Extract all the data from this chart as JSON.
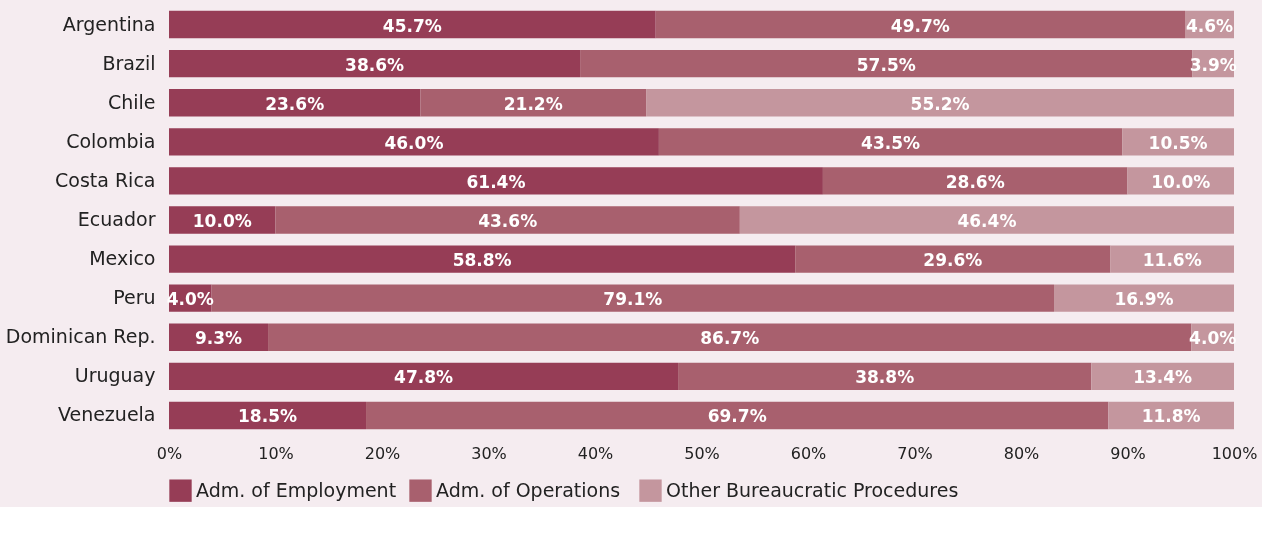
{
  "chart_data": {
    "type": "bar",
    "orientation": "horizontal",
    "stacked": true,
    "legend": "bottom",
    "grid": false,
    "categories": [
      "Argentina",
      "Brazil",
      "Chile",
      "Colombia",
      "Costa Rica",
      "Ecuador",
      "Mexico",
      "Peru",
      "Dominican Rep.",
      "Uruguay",
      "Venezuela"
    ],
    "series": [
      {
        "name": "Adm. of Employment",
        "color": "#963d56",
        "values": [
          45.7,
          38.6,
          23.6,
          46.0,
          61.4,
          10.0,
          58.8,
          4.0,
          9.3,
          47.8,
          18.5
        ],
        "value_labels": [
          "45.7%",
          "38.6%",
          "23.6%",
          "46.0%",
          "61.4%",
          "10.0%",
          "58.8%",
          "4.0%",
          "9.3%",
          "47.8%",
          "18.5%"
        ]
      },
      {
        "name": "Adm. of  Operations",
        "color": "#a8606e",
        "values": [
          49.7,
          57.5,
          21.2,
          43.5,
          28.6,
          43.6,
          29.6,
          79.1,
          86.7,
          38.8,
          69.7
        ],
        "value_labels": [
          "49.7%",
          "57.5%",
          "21.2%",
          "43.5%",
          "28.6%",
          "43.6%",
          "29.6%",
          "79.1%",
          "86.7%",
          "38.8%",
          "69.7%"
        ]
      },
      {
        "name": "Other Bureaucratic Procedures",
        "color": "#c4969e",
        "values": [
          4.6,
          3.9,
          55.2,
          10.5,
          10.0,
          46.4,
          11.6,
          16.9,
          4.0,
          13.4,
          11.8
        ],
        "value_labels": [
          "4.6%",
          "3.9%",
          "55.2%",
          "10.5%",
          "10.0%",
          "46.4%",
          "11.6%",
          "16.9%",
          "4.0%",
          "13.4%",
          "11.8%"
        ]
      }
    ],
    "xlim": [
      0,
      100
    ],
    "xticks": [
      {
        "value": 0,
        "label": "0%"
      },
      {
        "value": 10,
        "label": "10%"
      },
      {
        "value": 20,
        "label": "20%"
      },
      {
        "value": 30,
        "label": "30%"
      },
      {
        "value": 40,
        "label": "40%"
      },
      {
        "value": 50,
        "label": "50%"
      },
      {
        "value": 60,
        "label": "60%"
      },
      {
        "value": 70,
        "label": "70%"
      },
      {
        "value": 80,
        "label": "80%"
      },
      {
        "value": 90,
        "label": "90%"
      },
      {
        "value": 100,
        "label": "100%"
      }
    ]
  }
}
